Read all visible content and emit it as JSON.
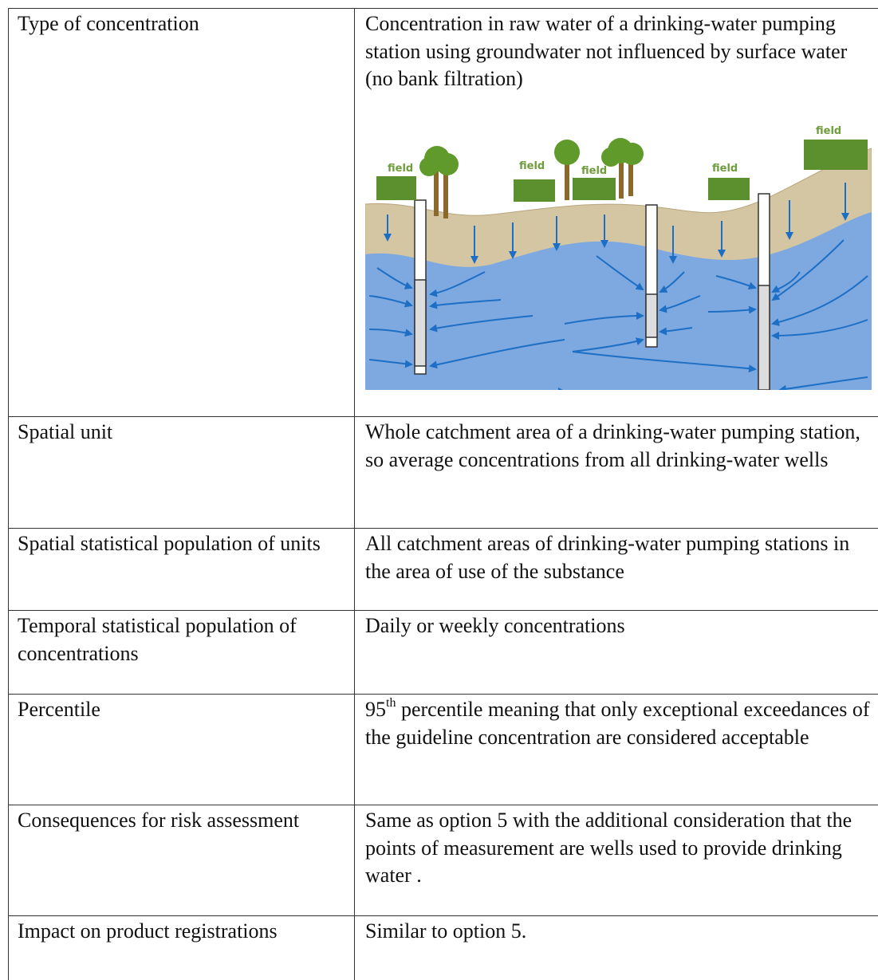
{
  "table": {
    "rows": [
      [
        "Type of concentration",
        "Concentration in raw water of a drinking-water pumping station using groundwater not influenced by surface water (no bank filtration)"
      ],
      [
        "Spatial unit",
        "Whole catchment area of a drinking-water pumping station, so average concentrations from all drinking-water wells"
      ],
      [
        "Spatial statistical population of units",
        "All catchment areas of drinking-water pumping stations in the area of use of the substance"
      ],
      [
        "Temporal statistical population of concentrations",
        "Daily or weekly concentrations"
      ],
      [
        "Percentile",
        {
          "number": "95",
          "superscript": "th",
          "text": " percentile meaning that only exceptional exceedances of the guideline concentration are considered acceptable"
        }
      ],
      [
        "Consequences for risk assessment",
        "Same as option 5 with the additional consideration that the points of measurement are wells used to provide drinking water ."
      ],
      [
        "Impact on product registrations",
        "Similar to option 5."
      ]
    ]
  },
  "figure": {
    "labels": [
      "field",
      "field",
      "field",
      "field",
      "field"
    ]
  }
}
